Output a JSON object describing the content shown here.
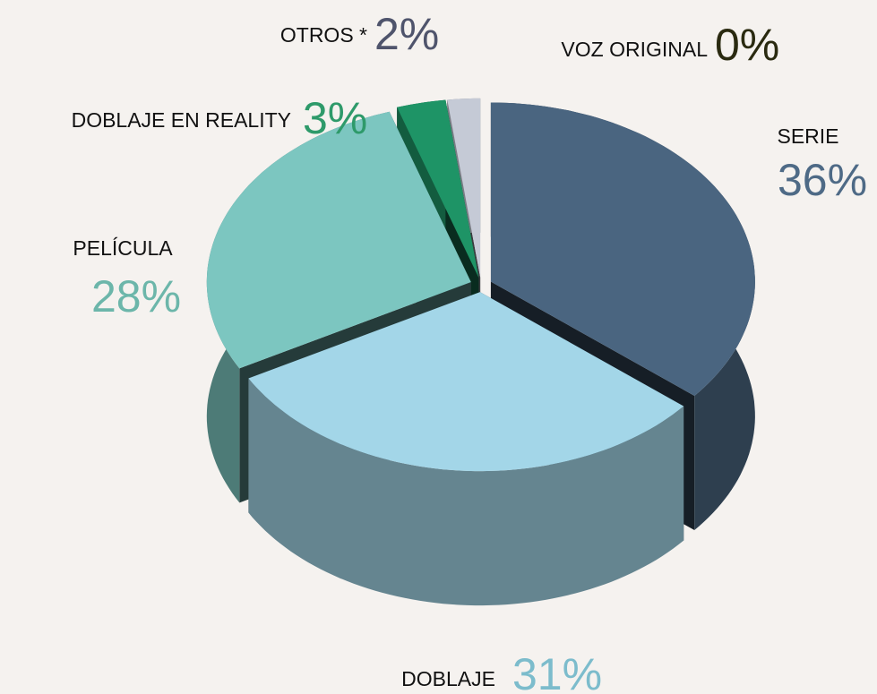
{
  "chart_data": {
    "type": "pie3d",
    "categories": [
      "SERIE",
      "DOBLAJE",
      "PELÍCULA",
      "DOBLAJE EN REALITY",
      "OTROS *",
      "VOZ ORIGINAL"
    ],
    "values": [
      36,
      31,
      28,
      3,
      2,
      0
    ],
    "value_labels": [
      "36%",
      "31%",
      "28%",
      "3%",
      "2%",
      "0%"
    ],
    "colors": [
      "#4a6580",
      "#a3d6e8",
      "#7cc6c0",
      "#1e9466",
      "#c5cad6",
      "#3a3a20"
    ],
    "label_colors": [
      "#4e6a86",
      "#7cbccc",
      "#6cb6aa",
      "#2e9a6a",
      "#4f546c",
      "#2a2a10"
    ]
  }
}
